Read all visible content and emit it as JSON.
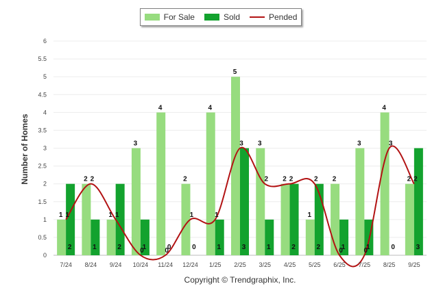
{
  "chart_data": {
    "type": "bar",
    "title": "",
    "xlabel": "",
    "ylabel": "Number of Homes",
    "ylim": [
      0,
      6
    ],
    "yticks": [
      "0",
      "0.5",
      "1",
      "1.5",
      "2",
      "2.5",
      "3",
      "3.5",
      "4",
      "4.5",
      "5",
      "5.5",
      "6"
    ],
    "categories": [
      "7/24",
      "8/24",
      "9/24",
      "10/24",
      "11/24",
      "12/24",
      "1/25",
      "2/25",
      "3/25",
      "4/25",
      "5/25",
      "6/25",
      "7/25",
      "8/25",
      "9/25"
    ],
    "series": [
      {
        "name": "For Sale",
        "kind": "bar",
        "color": "#97dc7f",
        "values": [
          1,
          2,
          1,
          3,
          4,
          2,
          4,
          5,
          3,
          2,
          1,
          2,
          3,
          4,
          2
        ]
      },
      {
        "name": "Sold",
        "kind": "bar",
        "color": "#13a22e",
        "values": [
          2,
          1,
          2,
          1,
          0,
          0,
          1,
          3,
          1,
          2,
          2,
          1,
          1,
          0,
          3
        ]
      },
      {
        "name": "Pended",
        "kind": "line",
        "color": "#b21213",
        "values": [
          1,
          2,
          1,
          0,
          0,
          1,
          1,
          3,
          2,
          2,
          2,
          0,
          0,
          3,
          2
        ]
      }
    ],
    "legend_position": "top-center",
    "grid": true
  },
  "footer": {
    "copyright": "Copyright © Trendgraphix, Inc."
  }
}
